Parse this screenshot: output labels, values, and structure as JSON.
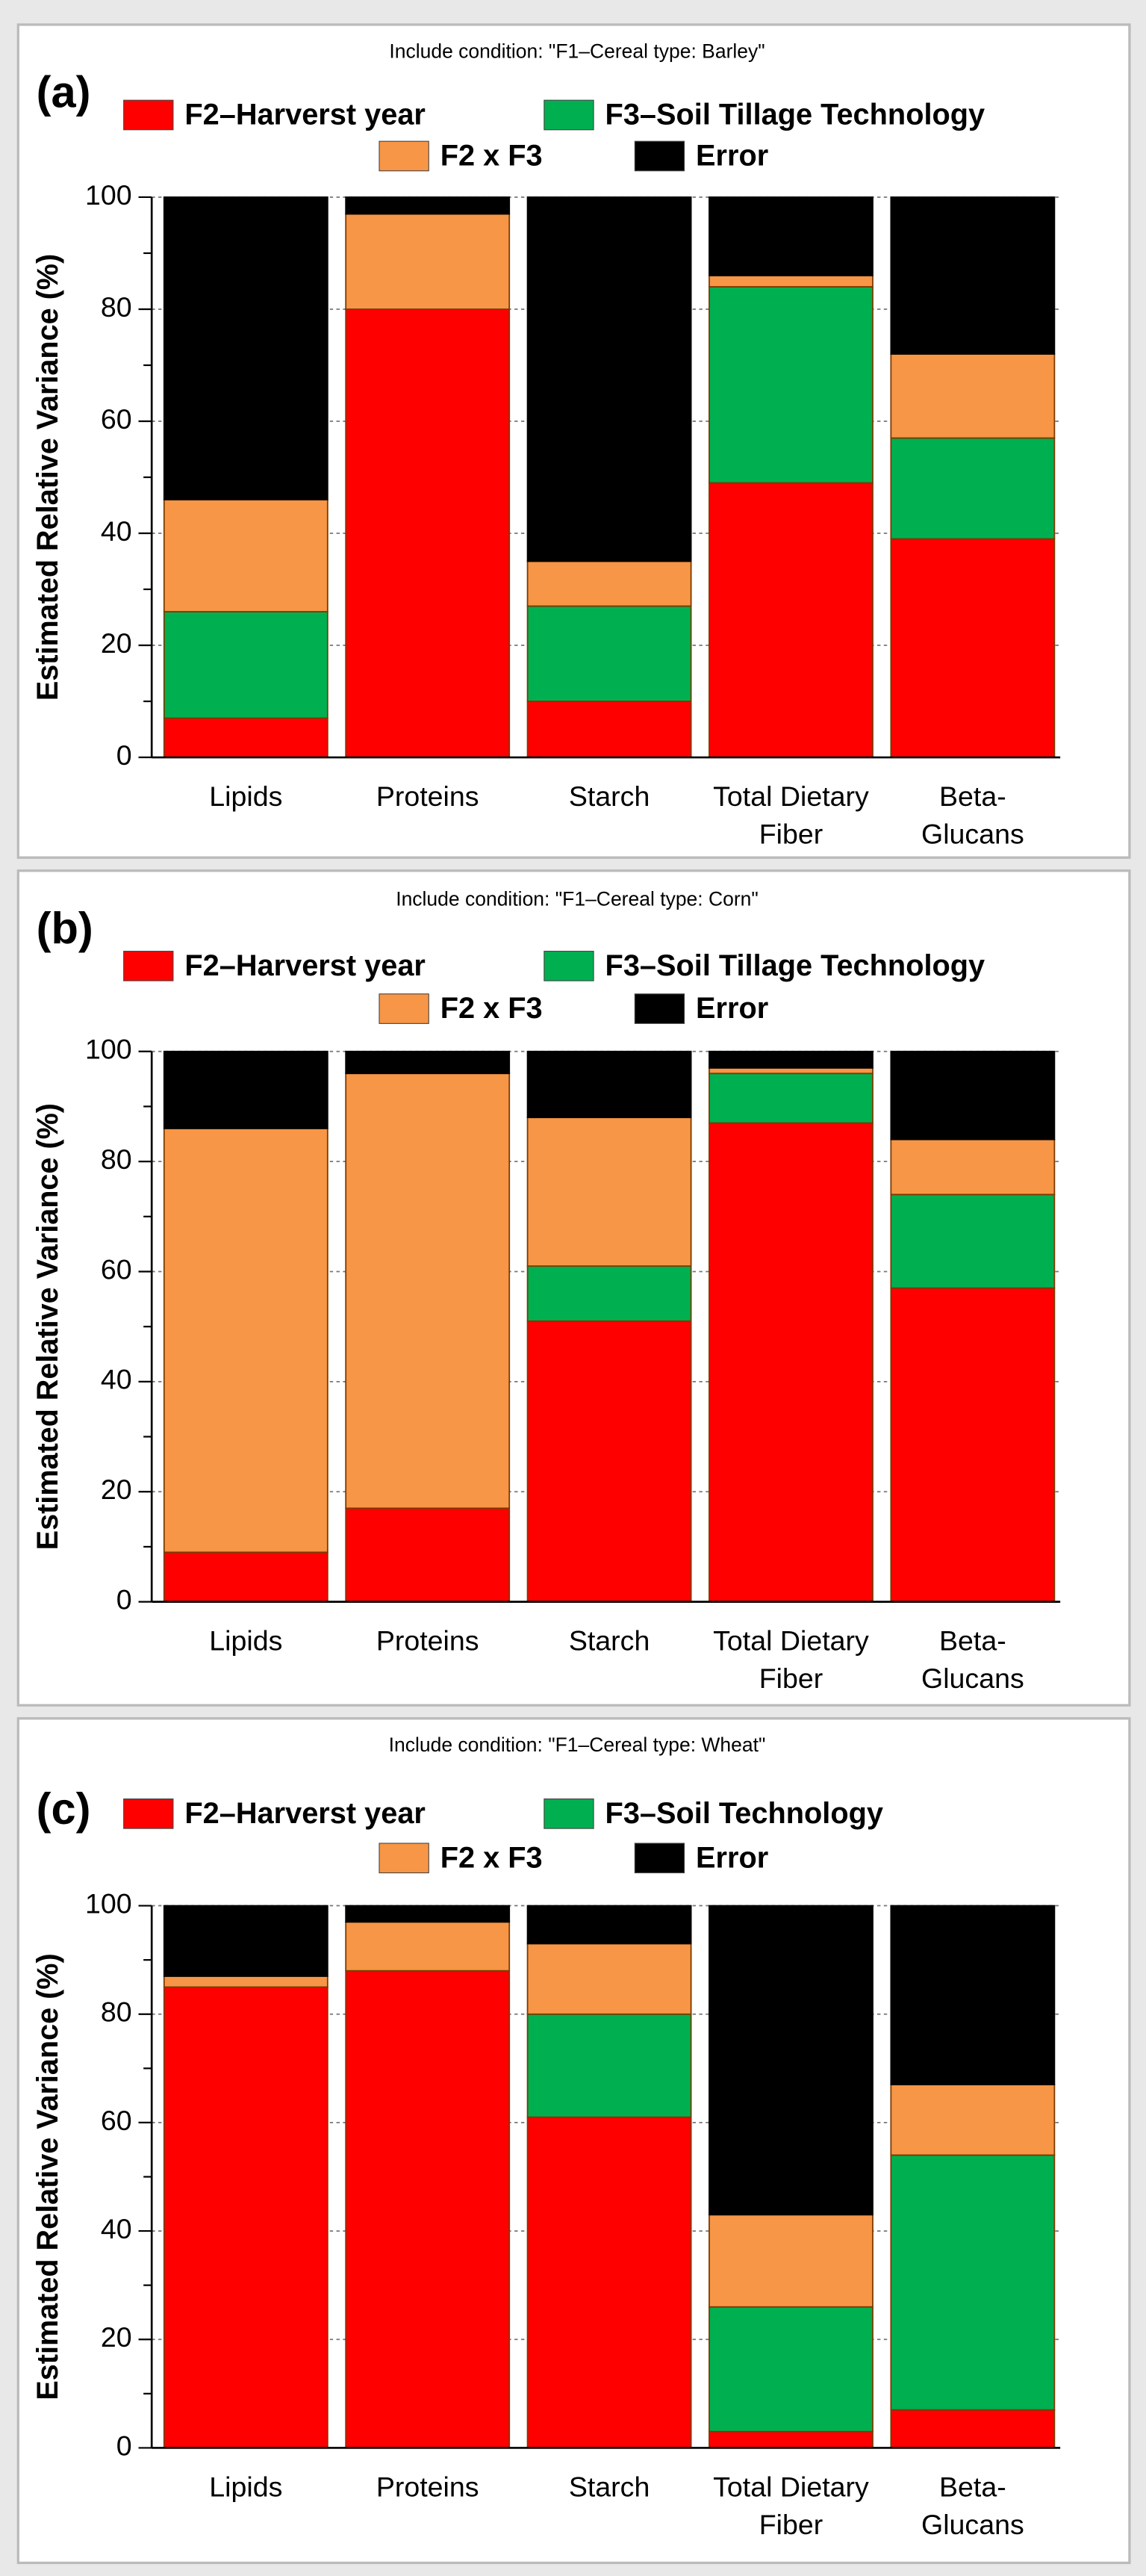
{
  "chart_data": [
    {
      "type": "bar",
      "stacked": true,
      "header": "Include condition: \"F1–Cereal type: Barley\"",
      "panel_label": "(a)",
      "ylabel": "Estimated Relative Variance (%)",
      "categories": [
        [
          "Lipids"
        ],
        [
          "Proteins"
        ],
        [
          "Starch"
        ],
        [
          "Total Dietary",
          "Fiber"
        ],
        [
          "Beta-",
          "Glucans"
        ]
      ],
      "series": [
        {
          "name": "F2–Harverst year",
          "color": "#ff0000",
          "values": [
            7,
            80,
            10,
            49,
            39
          ]
        },
        {
          "name": "F3–Soil Tillage Technology",
          "color": "#00b050",
          "values": [
            19,
            0,
            17,
            35,
            18
          ]
        },
        {
          "name": "F2 x F3",
          "color": "#f79646",
          "values": [
            20,
            17,
            8,
            2,
            15
          ]
        },
        {
          "name": "Error",
          "color": "#000000",
          "values": [
            54,
            3,
            65,
            14,
            28
          ]
        }
      ],
      "ylim": [
        0,
        100
      ],
      "yticks": [
        0,
        20,
        40,
        60,
        80,
        100
      ],
      "yminorticks": [
        10,
        30,
        50,
        70,
        90
      ],
      "grid": true
    },
    {
      "type": "bar",
      "stacked": true,
      "header": "Include condition: \"F1–Cereal type: Corn\"",
      "panel_label": "(b)",
      "ylabel": "Estimated Relative Variance (%)",
      "categories": [
        [
          "Lipids"
        ],
        [
          "Proteins"
        ],
        [
          "Starch"
        ],
        [
          "Total Dietary",
          "Fiber"
        ],
        [
          "Beta-",
          "Glucans"
        ]
      ],
      "series": [
        {
          "name": "F2–Harverst year",
          "color": "#ff0000",
          "values": [
            9,
            17,
            51,
            87,
            57
          ]
        },
        {
          "name": "F3–Soil Tillage Technology",
          "color": "#00b050",
          "values": [
            0,
            0,
            10,
            9,
            17
          ]
        },
        {
          "name": "F2 x F3",
          "color": "#f79646",
          "values": [
            77,
            79,
            27,
            1,
            10
          ]
        },
        {
          "name": "Error",
          "color": "#000000",
          "values": [
            14,
            4,
            12,
            3,
            16
          ]
        }
      ],
      "ylim": [
        0,
        100
      ],
      "yticks": [
        0,
        20,
        40,
        60,
        80,
        100
      ],
      "yminorticks": [
        10,
        30,
        50,
        70,
        90
      ],
      "grid": true
    },
    {
      "type": "bar",
      "stacked": true,
      "header": "Include condition: \"F1–Cereal type: Wheat\"",
      "panel_label": "(c)",
      "ylabel": "Estimated Relative Variance (%)",
      "categories": [
        [
          "Lipids"
        ],
        [
          "Proteins"
        ],
        [
          "Starch"
        ],
        [
          "Total Dietary",
          "Fiber"
        ],
        [
          "Beta-",
          "Glucans"
        ]
      ],
      "series": [
        {
          "name": "F2–Harverst year",
          "color": "#ff0000",
          "values": [
            85,
            88,
            61,
            3,
            7
          ]
        },
        {
          "name": "F3–Soil Technology",
          "color": "#00b050",
          "values": [
            0,
            0,
            19,
            23,
            47
          ]
        },
        {
          "name": "F2 x F3",
          "color": "#f79646",
          "values": [
            2,
            9,
            13,
            17,
            13
          ]
        },
        {
          "name": "Error",
          "color": "#000000",
          "values": [
            13,
            3,
            7,
            57,
            33
          ]
        }
      ],
      "ylim": [
        0,
        100
      ],
      "yticks": [
        0,
        20,
        40,
        60,
        80,
        100
      ],
      "yminorticks": [
        10,
        30,
        50,
        70,
        90
      ],
      "grid": true
    }
  ]
}
